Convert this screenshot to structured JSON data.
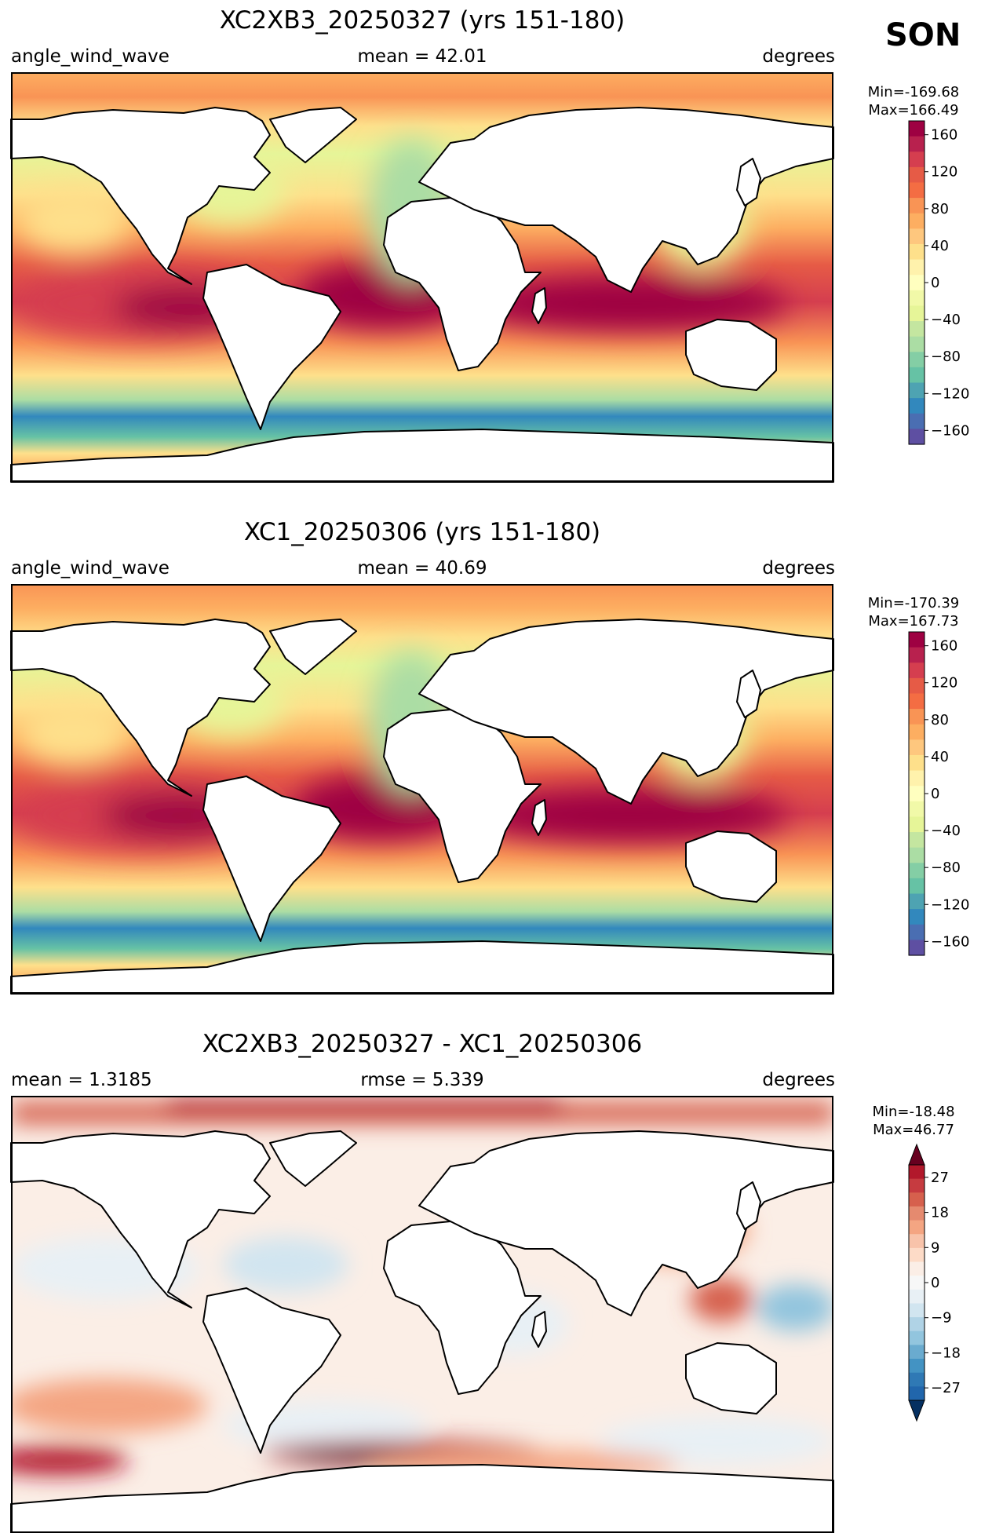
{
  "season": "SON",
  "panels": [
    {
      "title": "XC2XB3_20250327 (yrs 151-180)",
      "left_label": "angle_wind_wave",
      "center_label": "mean = 42.01",
      "right_label": "degrees",
      "min_text": "Min=-169.68",
      "max_text": "Max=166.49",
      "colorbar": {
        "ticks": [
          "160",
          "120",
          "80",
          "40",
          "0",
          "−40",
          "−80",
          "−120",
          "−160"
        ],
        "colors": [
          "#9e0142",
          "#b8214e",
          "#d53e4f",
          "#e65b46",
          "#f46d43",
          "#f99455",
          "#fdae61",
          "#fec77e",
          "#fee08b",
          "#fff2ac",
          "#ffffbf",
          "#f1f9a8",
          "#e6f598",
          "#c4e6a0",
          "#abdda4",
          "#84cea5",
          "#66c2a5",
          "#4ea3b2",
          "#3288bd",
          "#4a6eb2",
          "#5e4fa2"
        ],
        "extend": "neither"
      }
    },
    {
      "title": "XC1_20250306 (yrs 151-180)",
      "left_label": "angle_wind_wave",
      "center_label": "mean = 40.69",
      "right_label": "degrees",
      "min_text": "Min=-170.39",
      "max_text": "Max=167.73",
      "colorbar": {
        "ticks": [
          "160",
          "120",
          "80",
          "40",
          "0",
          "−40",
          "−80",
          "−120",
          "−160"
        ],
        "colors": [
          "#9e0142",
          "#b8214e",
          "#d53e4f",
          "#e65b46",
          "#f46d43",
          "#f99455",
          "#fdae61",
          "#fec77e",
          "#fee08b",
          "#fff2ac",
          "#ffffbf",
          "#f1f9a8",
          "#e6f598",
          "#c4e6a0",
          "#abdda4",
          "#84cea5",
          "#66c2a5",
          "#4ea3b2",
          "#3288bd",
          "#4a6eb2",
          "#5e4fa2"
        ],
        "extend": "neither"
      }
    },
    {
      "title": "XC2XB3_20250327 - XC1_20250306",
      "left_label": "mean = 1.3185",
      "center_label": "rmse = 5.339",
      "right_label": "degrees",
      "min_text": "Min=-18.48",
      "max_text": "Max=46.77",
      "colorbar": {
        "ticks": [
          "27",
          "18",
          "9",
          "0",
          "−9",
          "−18",
          "−27"
        ],
        "colors": [
          "#b2182b",
          "#c63b40",
          "#d6604d",
          "#e58a6f",
          "#f4a582",
          "#f8c3aa",
          "#fddbc7",
          "#fbeee6",
          "#f7f7f7",
          "#e8f0f5",
          "#d1e5f0",
          "#b0d3e6",
          "#92c5de",
          "#6aabcf",
          "#4393c3",
          "#2f79b5",
          "#2166ac"
        ],
        "extend": "both",
        "top_arrow": "#67001f",
        "bottom_arrow": "#053061"
      }
    }
  ]
}
